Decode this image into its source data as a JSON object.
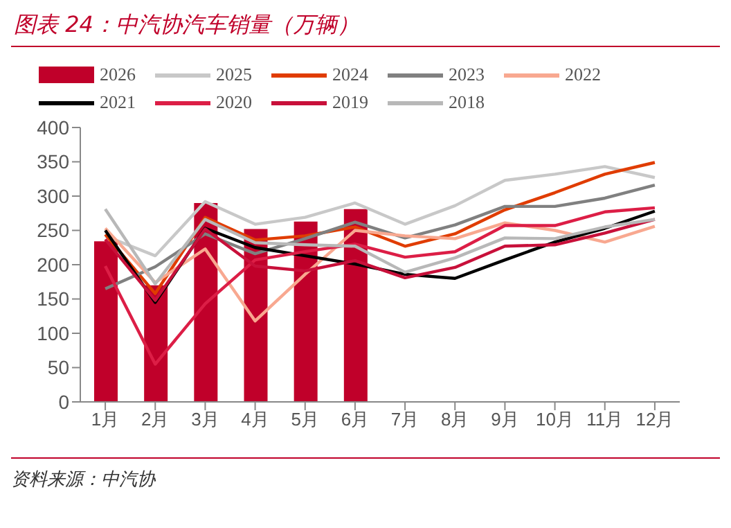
{
  "chart_data": {
    "type": "line",
    "title": "图表 24：中汽协汽车销量（万辆）",
    "categories": [
      "1月",
      "2月",
      "3月",
      "4月",
      "5月",
      "6月",
      "7月",
      "8月",
      "9月",
      "10月",
      "11月",
      "12月"
    ],
    "series": [
      {
        "name": "2026",
        "type": "bar",
        "color": "#c0002a",
        "values": [
          234,
          170,
          290,
          252,
          263,
          281,
          null,
          null,
          null,
          null,
          null,
          null
        ]
      },
      {
        "name": "2025",
        "color": "#c8c8c8",
        "values": [
          242,
          213,
          292,
          259,
          269,
          290,
          259,
          286,
          323,
          332,
          343,
          327
        ]
      },
      {
        "name": "2024",
        "color": "#e03c00",
        "values": [
          244,
          158,
          269,
          236,
          242,
          255,
          227,
          245,
          280,
          305,
          332,
          349
        ]
      },
      {
        "name": "2023",
        "color": "#808080",
        "values": [
          165,
          197,
          245,
          216,
          238,
          262,
          239,
          258,
          285,
          285,
          297,
          316
        ]
      },
      {
        "name": "2022",
        "color": "#f8a890",
        "values": [
          253,
          174,
          223,
          118,
          186,
          250,
          242,
          238,
          261,
          250,
          233,
          256
        ]
      },
      {
        "name": "2021",
        "color": "#000000",
        "values": [
          250,
          145,
          253,
          225,
          213,
          201,
          186,
          180,
          207,
          233,
          253,
          278
        ]
      },
      {
        "name": "2020",
        "color": "#dc1e46",
        "values": [
          198,
          55,
          143,
          207,
          219,
          230,
          211,
          219,
          257,
          257,
          277,
          283
        ]
      },
      {
        "name": "2019",
        "color": "#c8103a",
        "values": [
          237,
          148,
          252,
          198,
          191,
          206,
          181,
          196,
          227,
          229,
          246,
          266
        ]
      },
      {
        "name": "2018",
        "color": "#b8b8b8",
        "values": [
          281,
          172,
          266,
          232,
          229,
          227,
          189,
          210,
          239,
          238,
          255,
          266
        ]
      }
    ],
    "ylim": [
      0,
      400
    ],
    "yticks": [
      0,
      50,
      100,
      150,
      200,
      250,
      300,
      350,
      400
    ],
    "grid": false,
    "legend": "top",
    "marker": "none",
    "line_style": "solid",
    "annotations": [
      "资料来源：中汽协"
    ]
  }
}
